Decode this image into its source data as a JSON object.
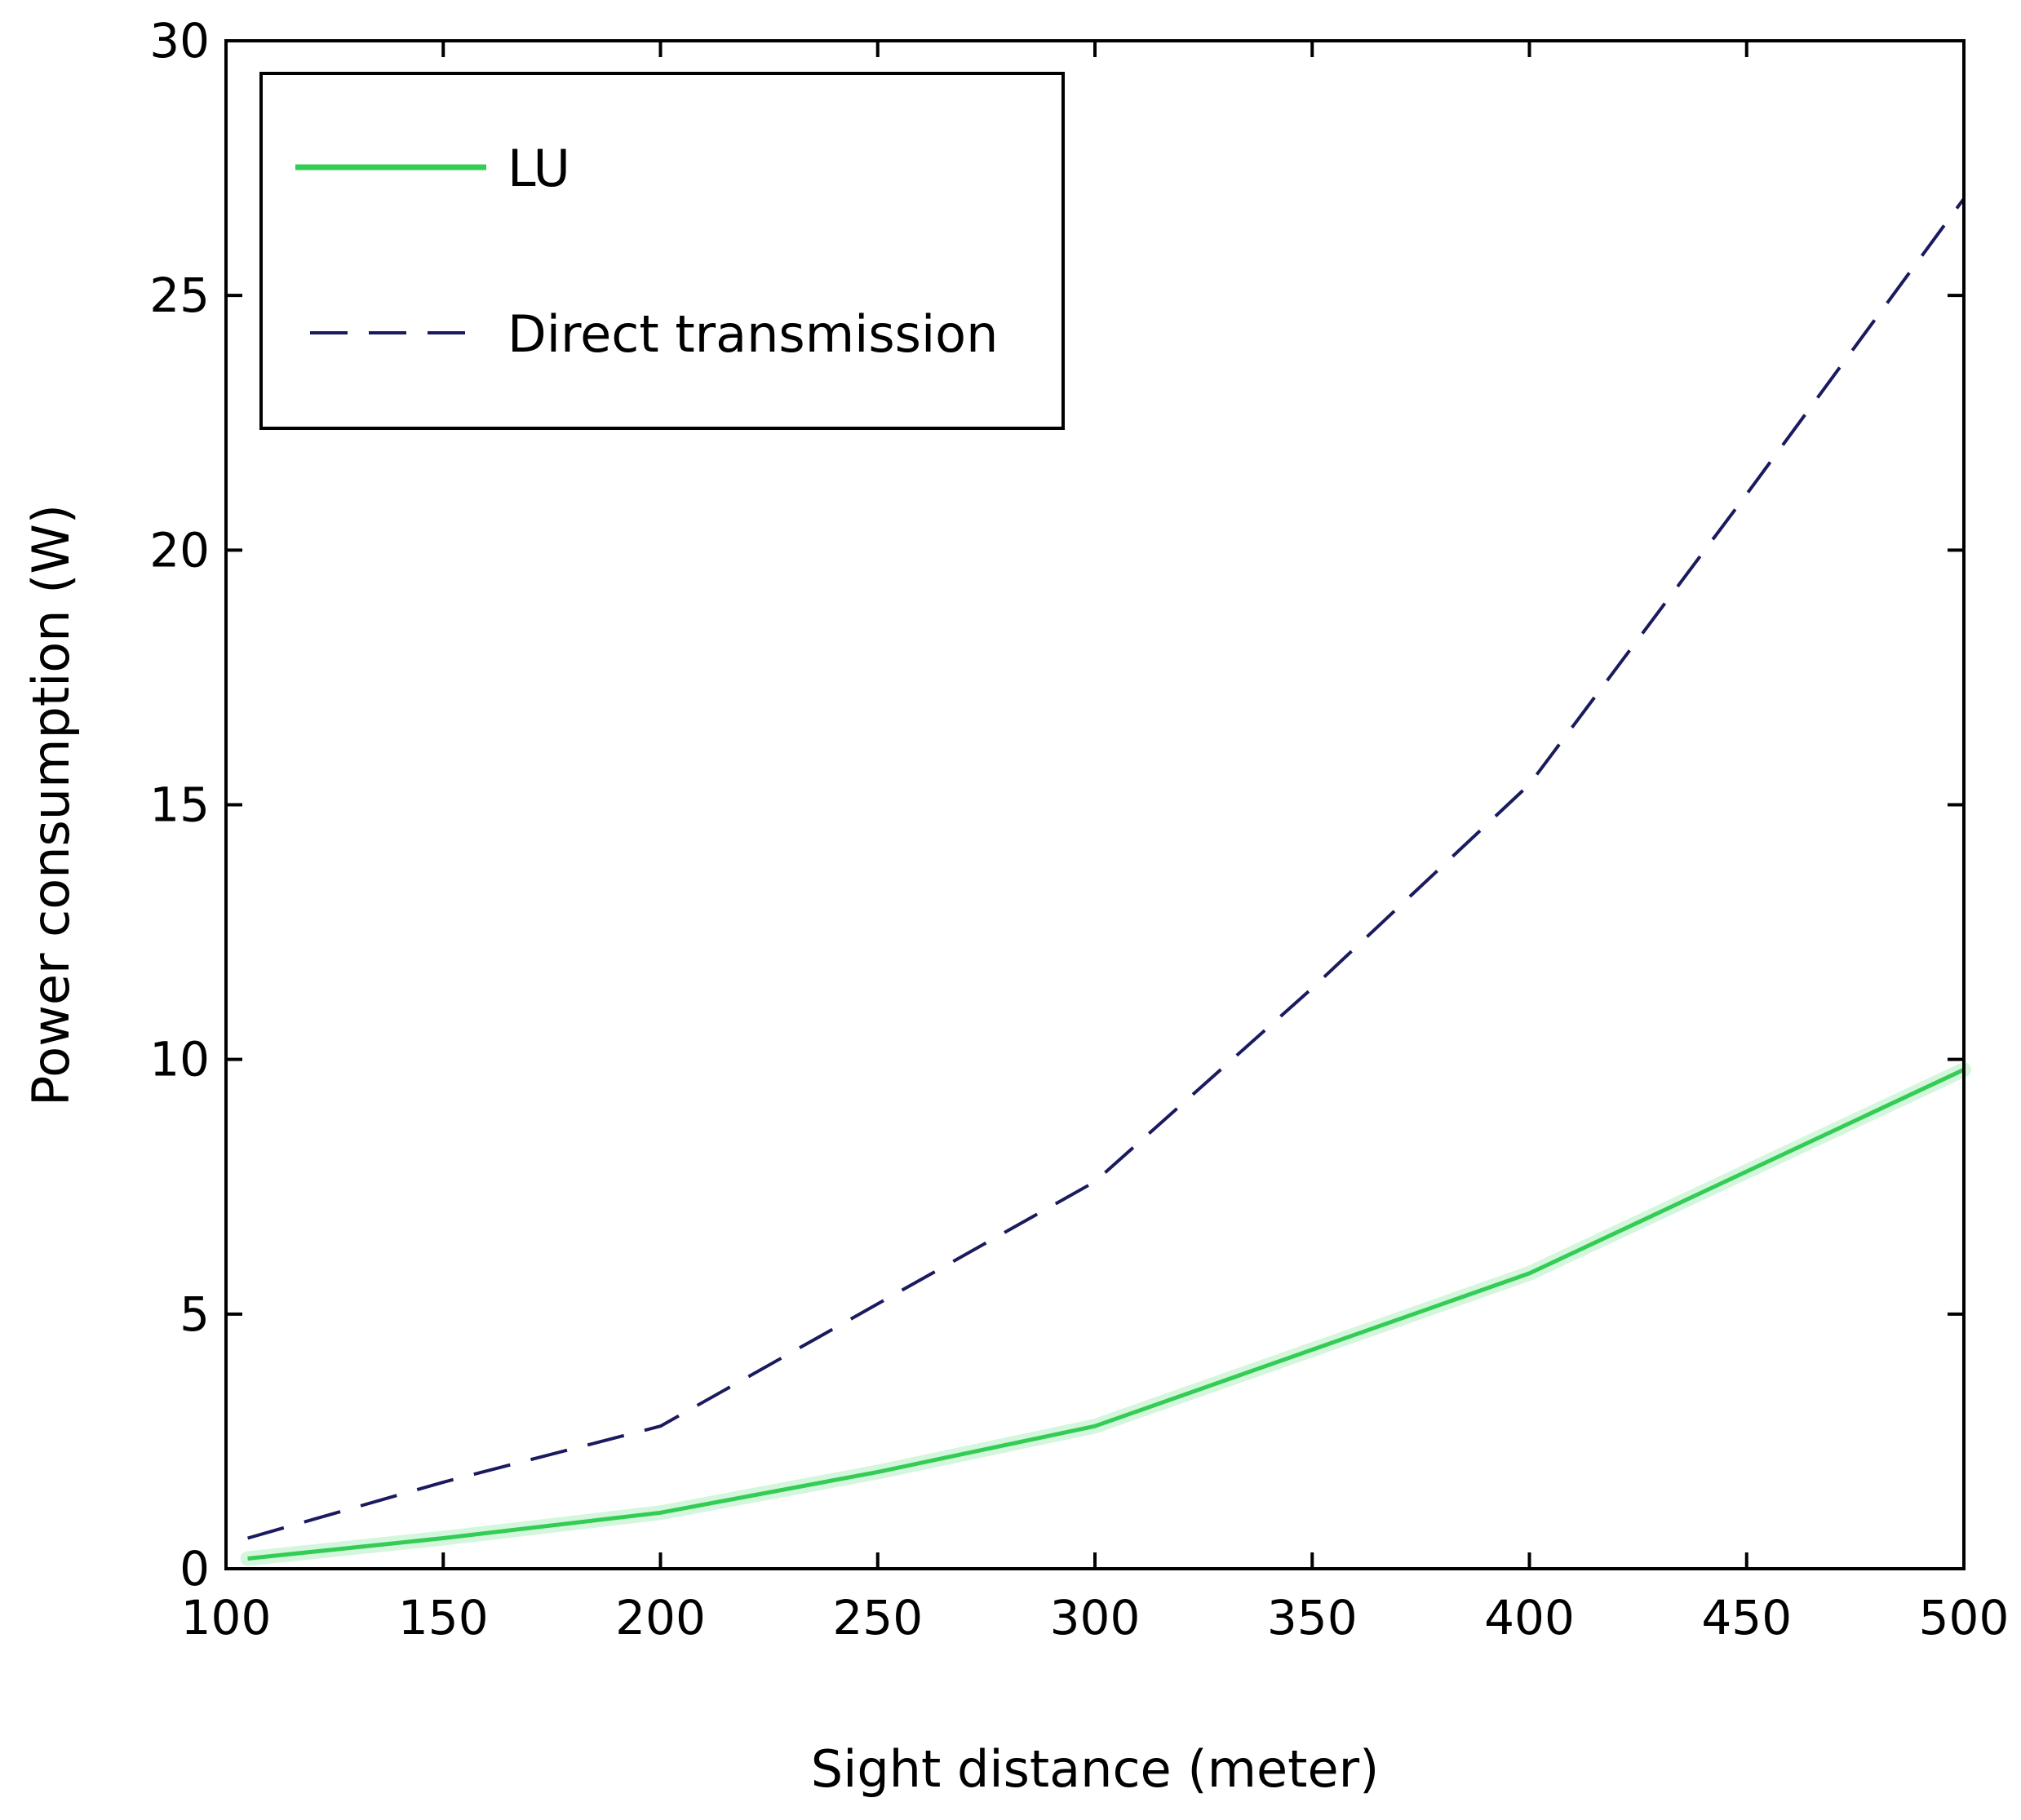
{
  "chart_data": {
    "type": "line",
    "title": "",
    "xlabel": "Sight distance (meter)",
    "ylabel": "Power consumption (W)",
    "xlim": [
      100,
      500
    ],
    "ylim": [
      0,
      30
    ],
    "xticks": [
      100,
      150,
      200,
      250,
      300,
      350,
      400,
      450,
      500
    ],
    "yticks": [
      0,
      5,
      10,
      15,
      20,
      25,
      30
    ],
    "grid": false,
    "legend_position": "top-left",
    "series": [
      {
        "name": "LU",
        "color": "#33cc55",
        "style": "solid",
        "x": [
          105,
          150,
          200,
          250,
          300,
          350,
          400,
          450,
          500
        ],
        "y": [
          0.2,
          0.6,
          1.1,
          1.9,
          2.8,
          4.3,
          5.8,
          7.8,
          9.8
        ]
      },
      {
        "name": "Direct transmission",
        "color": "#1a1a5e",
        "style": "dashed",
        "x": [
          105,
          150,
          200,
          250,
          300,
          350,
          400,
          450,
          500
        ],
        "y": [
          0.6,
          1.7,
          2.8,
          5.2,
          7.6,
          11.4,
          15.4,
          21.1,
          26.9
        ]
      }
    ]
  }
}
